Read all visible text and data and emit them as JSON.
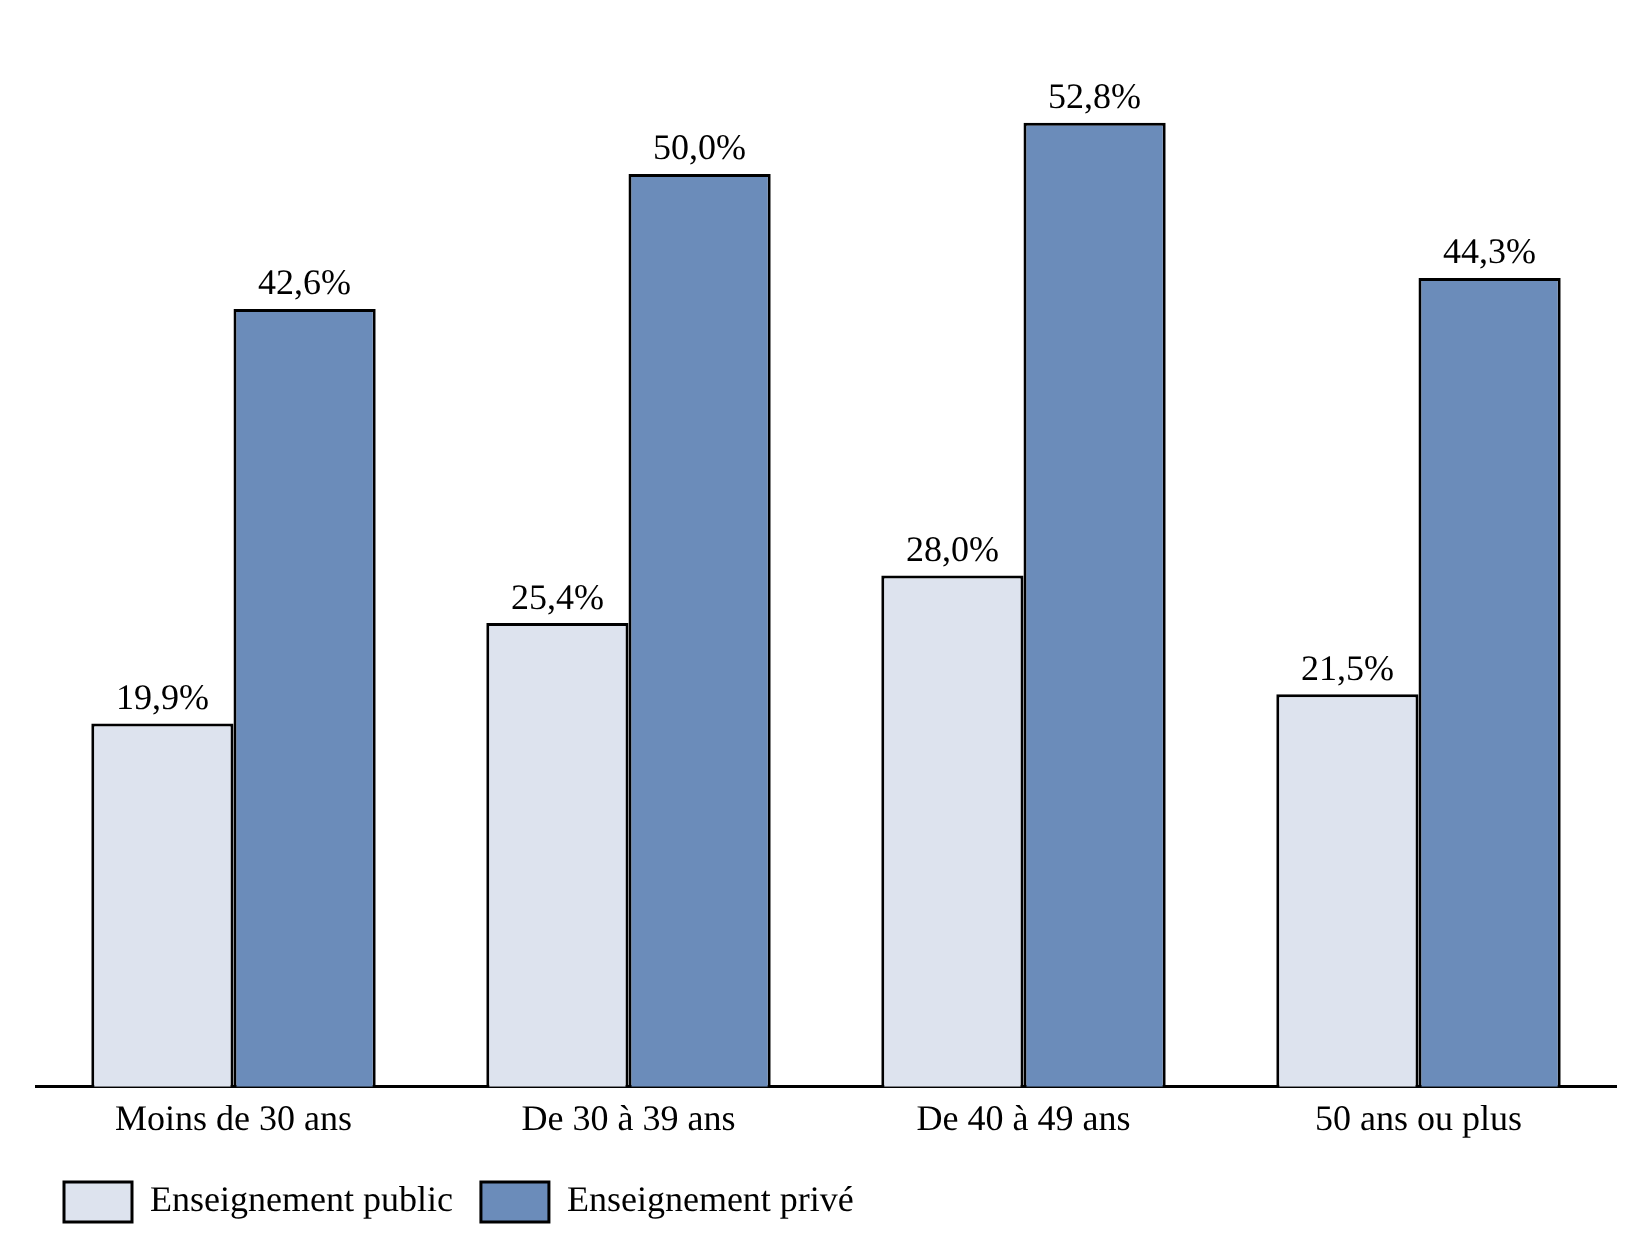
{
  "chart_data": {
    "type": "bar",
    "categories": [
      "Moins de 30 ans",
      "De 30 à 39 ans",
      "De 40 à 49 ans",
      "50 ans ou plus"
    ],
    "series": [
      {
        "name": "Enseignement public",
        "color": "#dde3ee",
        "values": [
          19.9,
          25.4,
          28.0,
          21.5
        ],
        "value_labels": [
          "19,9%",
          "25,4%",
          "28,0%",
          "21,5%"
        ]
      },
      {
        "name": "Enseignement privé",
        "color": "#6b8cba",
        "values": [
          42.6,
          50.0,
          52.8,
          44.3
        ],
        "value_labels": [
          "42,6%",
          "50,0%",
          "52,8%",
          "44,3%"
        ]
      }
    ],
    "legend": "bottom left",
    "grid": false
  }
}
